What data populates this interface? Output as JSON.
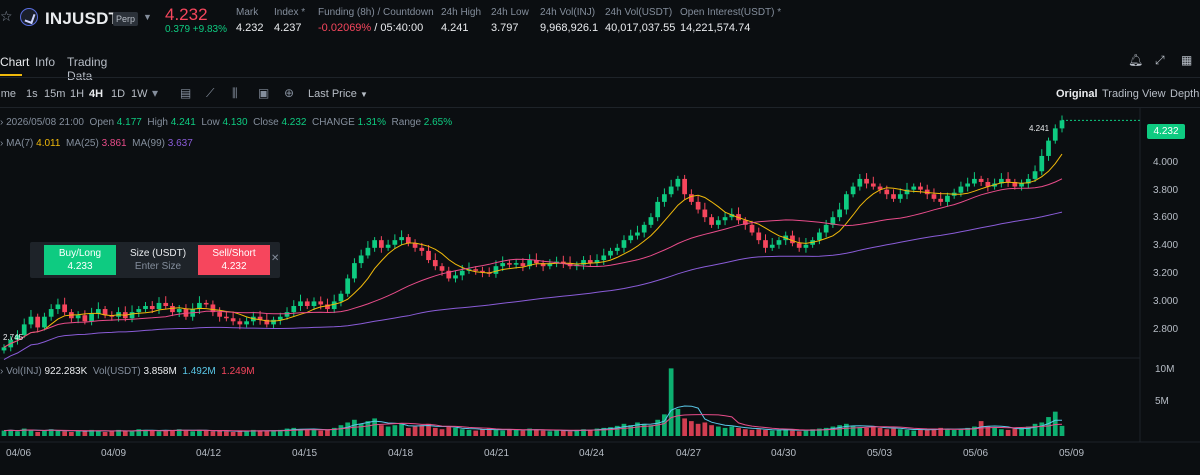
{
  "header": {
    "symbol": "INJUSDT",
    "contract": "Perp",
    "last_price": "4.232",
    "change": "0.379 +9.83%",
    "stats": [
      {
        "label": "Mark",
        "value": "4.232"
      },
      {
        "label": "Index *",
        "value": "4.237"
      },
      {
        "label": "Funding (8h) / Countdown",
        "value_neg": "-0.02069%",
        "value": " / 05:40:00"
      },
      {
        "label": "24h High",
        "value": "4.241"
      },
      {
        "label": "24h Low",
        "value": "3.797"
      },
      {
        "label": "24h Vol(INJ)",
        "value": "9,968,926.1"
      },
      {
        "label": "24h Vol(USDT)",
        "value": "40,017,037.55"
      },
      {
        "label": "Open Interest(USDT) *",
        "value": "14,221,574.74"
      }
    ]
  },
  "tabs": [
    "Chart",
    "Info",
    "Trading Data"
  ],
  "toolbar": {
    "intervals": [
      "Time",
      "1s",
      "15m",
      "1H",
      "4H",
      "1D",
      "1W"
    ],
    "active_interval": "4H",
    "price_type": "Last Price",
    "views": [
      "Original",
      "Trading View",
      "Depth"
    ]
  },
  "ohlc": {
    "date": "2026/05/08 21:00",
    "open_label": "Open",
    "open": "4.177",
    "high_label": "High",
    "high": "4.241",
    "low_label": "Low",
    "low": "4.130",
    "close_label": "Close",
    "close": "4.232",
    "change_label": "CHANGE",
    "change": "1.31%",
    "range_label": "Range",
    "range": "2.65%"
  },
  "ma": {
    "ma7_label": "MA(7)",
    "ma7": "4.011",
    "ma25_label": "MA(25)",
    "ma25": "3.861",
    "ma99_label": "MA(99)",
    "ma99": "3.637"
  },
  "volume": {
    "inj_label": "Vol(INJ)",
    "inj": "922.283K",
    "usdt_label": "Vol(USDT)",
    "usdt": "3.858M",
    "v1": "1.492M",
    "v2": "1.249M"
  },
  "order": {
    "buy_label": "Buy/Long",
    "buy_price": "4.233",
    "size_label": "Size (USDT)",
    "size_placeholder": "Enter Size",
    "sell_label": "Sell/Short",
    "sell_price": "4.232"
  },
  "price_axis": [
    "4.000",
    "3.800",
    "3.600",
    "3.400",
    "3.200",
    "3.000",
    "2.800"
  ],
  "volume_axis": [
    "10M",
    "5M"
  ],
  "date_axis": [
    "04/06",
    "04/09",
    "04/12",
    "04/15",
    "04/18",
    "04/21",
    "04/24",
    "04/27",
    "04/30",
    "05/03",
    "05/06",
    "05/09"
  ],
  "high_marker": "4.241",
  "low_marker": "2.745",
  "last_price_tag": "4.232",
  "colors": {
    "up": "#0ecb81",
    "down": "#f6465d",
    "ma7": "#f0b90b",
    "ma25": "#e84c8a",
    "ma99": "#8a5cd8"
  },
  "chart_data": {
    "type": "candlestick",
    "ylim": [
      2.7,
      4.3
    ],
    "close_series": [
      2.75,
      2.8,
      2.83,
      2.9,
      2.95,
      2.88,
      2.95,
      3.0,
      3.03,
      2.98,
      2.94,
      2.96,
      2.92,
      2.97,
      3.0,
      2.96,
      2.95,
      2.98,
      2.94,
      2.98,
      3.0,
      3.02,
      3.0,
      3.04,
      3.02,
      2.98,
      3.0,
      2.95,
      3.0,
      3.04,
      3.03,
      2.98,
      2.95,
      2.94,
      2.92,
      2.9,
      2.92,
      2.95,
      2.93,
      2.9,
      2.93,
      2.95,
      2.98,
      3.02,
      3.05,
      3.02,
      3.05,
      3.03,
      3.0,
      3.05,
      3.1,
      3.2,
      3.3,
      3.35,
      3.4,
      3.45,
      3.4,
      3.42,
      3.45,
      3.47,
      3.43,
      3.4,
      3.38,
      3.32,
      3.28,
      3.25,
      3.2,
      3.22,
      3.25,
      3.26,
      3.25,
      3.24,
      3.23,
      3.28,
      3.3,
      3.29,
      3.3,
      3.28,
      3.32,
      3.3,
      3.28,
      3.3,
      3.31,
      3.3,
      3.28,
      3.29,
      3.32,
      3.3,
      3.32,
      3.35,
      3.38,
      3.4,
      3.45,
      3.48,
      3.5,
      3.55,
      3.6,
      3.7,
      3.75,
      3.8,
      3.85,
      3.75,
      3.7,
      3.65,
      3.6,
      3.55,
      3.58,
      3.6,
      3.62,
      3.58,
      3.55,
      3.5,
      3.45,
      3.4,
      3.42,
      3.45,
      3.48,
      3.43,
      3.4,
      3.42,
      3.45,
      3.5,
      3.55,
      3.6,
      3.65,
      3.75,
      3.8,
      3.85,
      3.82,
      3.8,
      3.78,
      3.75,
      3.72,
      3.75,
      3.78,
      3.8,
      3.78,
      3.75,
      3.72,
      3.7,
      3.74,
      3.76,
      3.8,
      3.82,
      3.85,
      3.83,
      3.8,
      3.82,
      3.85,
      3.83,
      3.8,
      3.82,
      3.85,
      3.9,
      4.0,
      4.1,
      4.18,
      4.232
    ],
    "volume_series": [
      0.8,
      0.9,
      0.7,
      1.1,
      0.9,
      0.6,
      0.8,
      1.0,
      0.8,
      0.7,
      0.6,
      0.8,
      0.7,
      0.9,
      0.8,
      0.6,
      0.7,
      0.9,
      0.8,
      0.7,
      1.0,
      0.9,
      0.8,
      0.7,
      0.8,
      0.9,
      1.0,
      0.8,
      0.7,
      0.9,
      0.8,
      0.7,
      0.8,
      0.7,
      0.6,
      0.7,
      0.8,
      0.9,
      0.8,
      0.7,
      0.8,
      0.9,
      1.1,
      1.2,
      1.0,
      0.9,
      1.0,
      0.8,
      0.9,
      1.2,
      1.6,
      2.0,
      2.4,
      1.8,
      2.2,
      2.6,
      1.6,
      1.4,
      1.6,
      1.8,
      1.2,
      1.4,
      1.6,
      1.8,
      1.2,
      1.0,
      1.4,
      1.2,
      1.0,
      0.9,
      0.8,
      1.0,
      1.1,
      0.9,
      0.8,
      1.0,
      0.9,
      0.8,
      1.1,
      0.9,
      0.8,
      0.7,
      0.9,
      0.8,
      0.7,
      0.9,
      1.0,
      0.9,
      1.1,
      1.2,
      1.3,
      1.5,
      1.8,
      1.6,
      2.0,
      1.8,
      1.6,
      2.4,
      3.2,
      10.0,
      4.0,
      2.6,
      2.2,
      1.8,
      2.0,
      1.6,
      1.4,
      1.2,
      1.4,
      1.2,
      1.0,
      0.9,
      1.0,
      0.9,
      0.8,
      0.9,
      1.0,
      0.8,
      0.7,
      0.8,
      1.0,
      1.1,
      1.2,
      1.4,
      1.6,
      1.8,
      1.5,
      1.3,
      1.2,
      1.4,
      1.2,
      1.0,
      1.1,
      1.0,
      0.9,
      0.8,
      1.0,
      0.9,
      1.1,
      1.2,
      1.0,
      0.9,
      1.0,
      1.2,
      1.4,
      2.2,
      1.4,
      1.2,
      1.0,
      0.9,
      1.1,
      1.2,
      1.4,
      1.8,
      2.0,
      2.8,
      3.6,
      1.5
    ]
  }
}
